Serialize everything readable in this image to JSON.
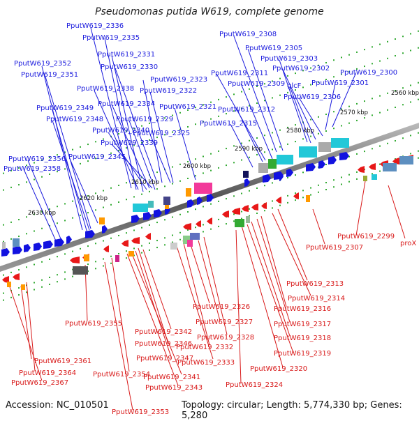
{
  "title": "Pseudomonas putida W619, complete genome",
  "footer": {
    "accession": "Accession: NC_010501",
    "summary": "Topology: circular; Length: 5,774,330 bp; Genes: 5,280"
  },
  "ticks": [
    "2560 kbp",
    "2570 kbp",
    "2580 kbp",
    "2590 kbp",
    "2600 kbp",
    "2610 kbp",
    "2620 kbp",
    "2630 kbp"
  ],
  "forward_labels": [
    "PputW619_2336",
    "PputW619_2335",
    "PputW619_2331",
    "PputW619_2352",
    "PputW619_2330",
    "PputW619_2351",
    "PputW619_2323",
    "PputW619_2338",
    "PputW619_2322",
    "PputW619_2334",
    "PputW619_2349",
    "PputW619_2321",
    "PputW619_2348",
    "PputW619_2329",
    "PputW619_2340",
    "PputW619_2325",
    "PputW619_2339",
    "PputW619_2345",
    "PputW619_2356",
    "PputW619_2358",
    "PputW619_2308",
    "PputW619_2305",
    "PputW619_2303",
    "PputW619_2302",
    "PputW619_2300",
    "PputW619_2311",
    "PputW619_2309",
    "glcF",
    "PputW619_2301",
    "PputW619_2306",
    "PputW619_2312",
    "PputW619_2315"
  ],
  "reverse_labels": [
    "PputW619_2299",
    "proX",
    "PputW619_2307",
    "PputW619_2313",
    "PputW619_2314",
    "PputW619_2326",
    "PputW619_2316",
    "PputW619_2327",
    "PputW619_2317",
    "PputW619_2355",
    "PputW619_2328",
    "PputW619_2318",
    "PputW619_2342",
    "PputW619_2332",
    "PputW619_2346",
    "PputW619_2319",
    "PputW619_2333",
    "PputW619_2347",
    "PputW619_2320",
    "PputW619_2361",
    "PputW619_2364",
    "PputW619_2341",
    "PputW619_2354",
    "PputW619_2324",
    "PputW619_2367",
    "PputW619_2343",
    "PputW619_2353"
  ]
}
